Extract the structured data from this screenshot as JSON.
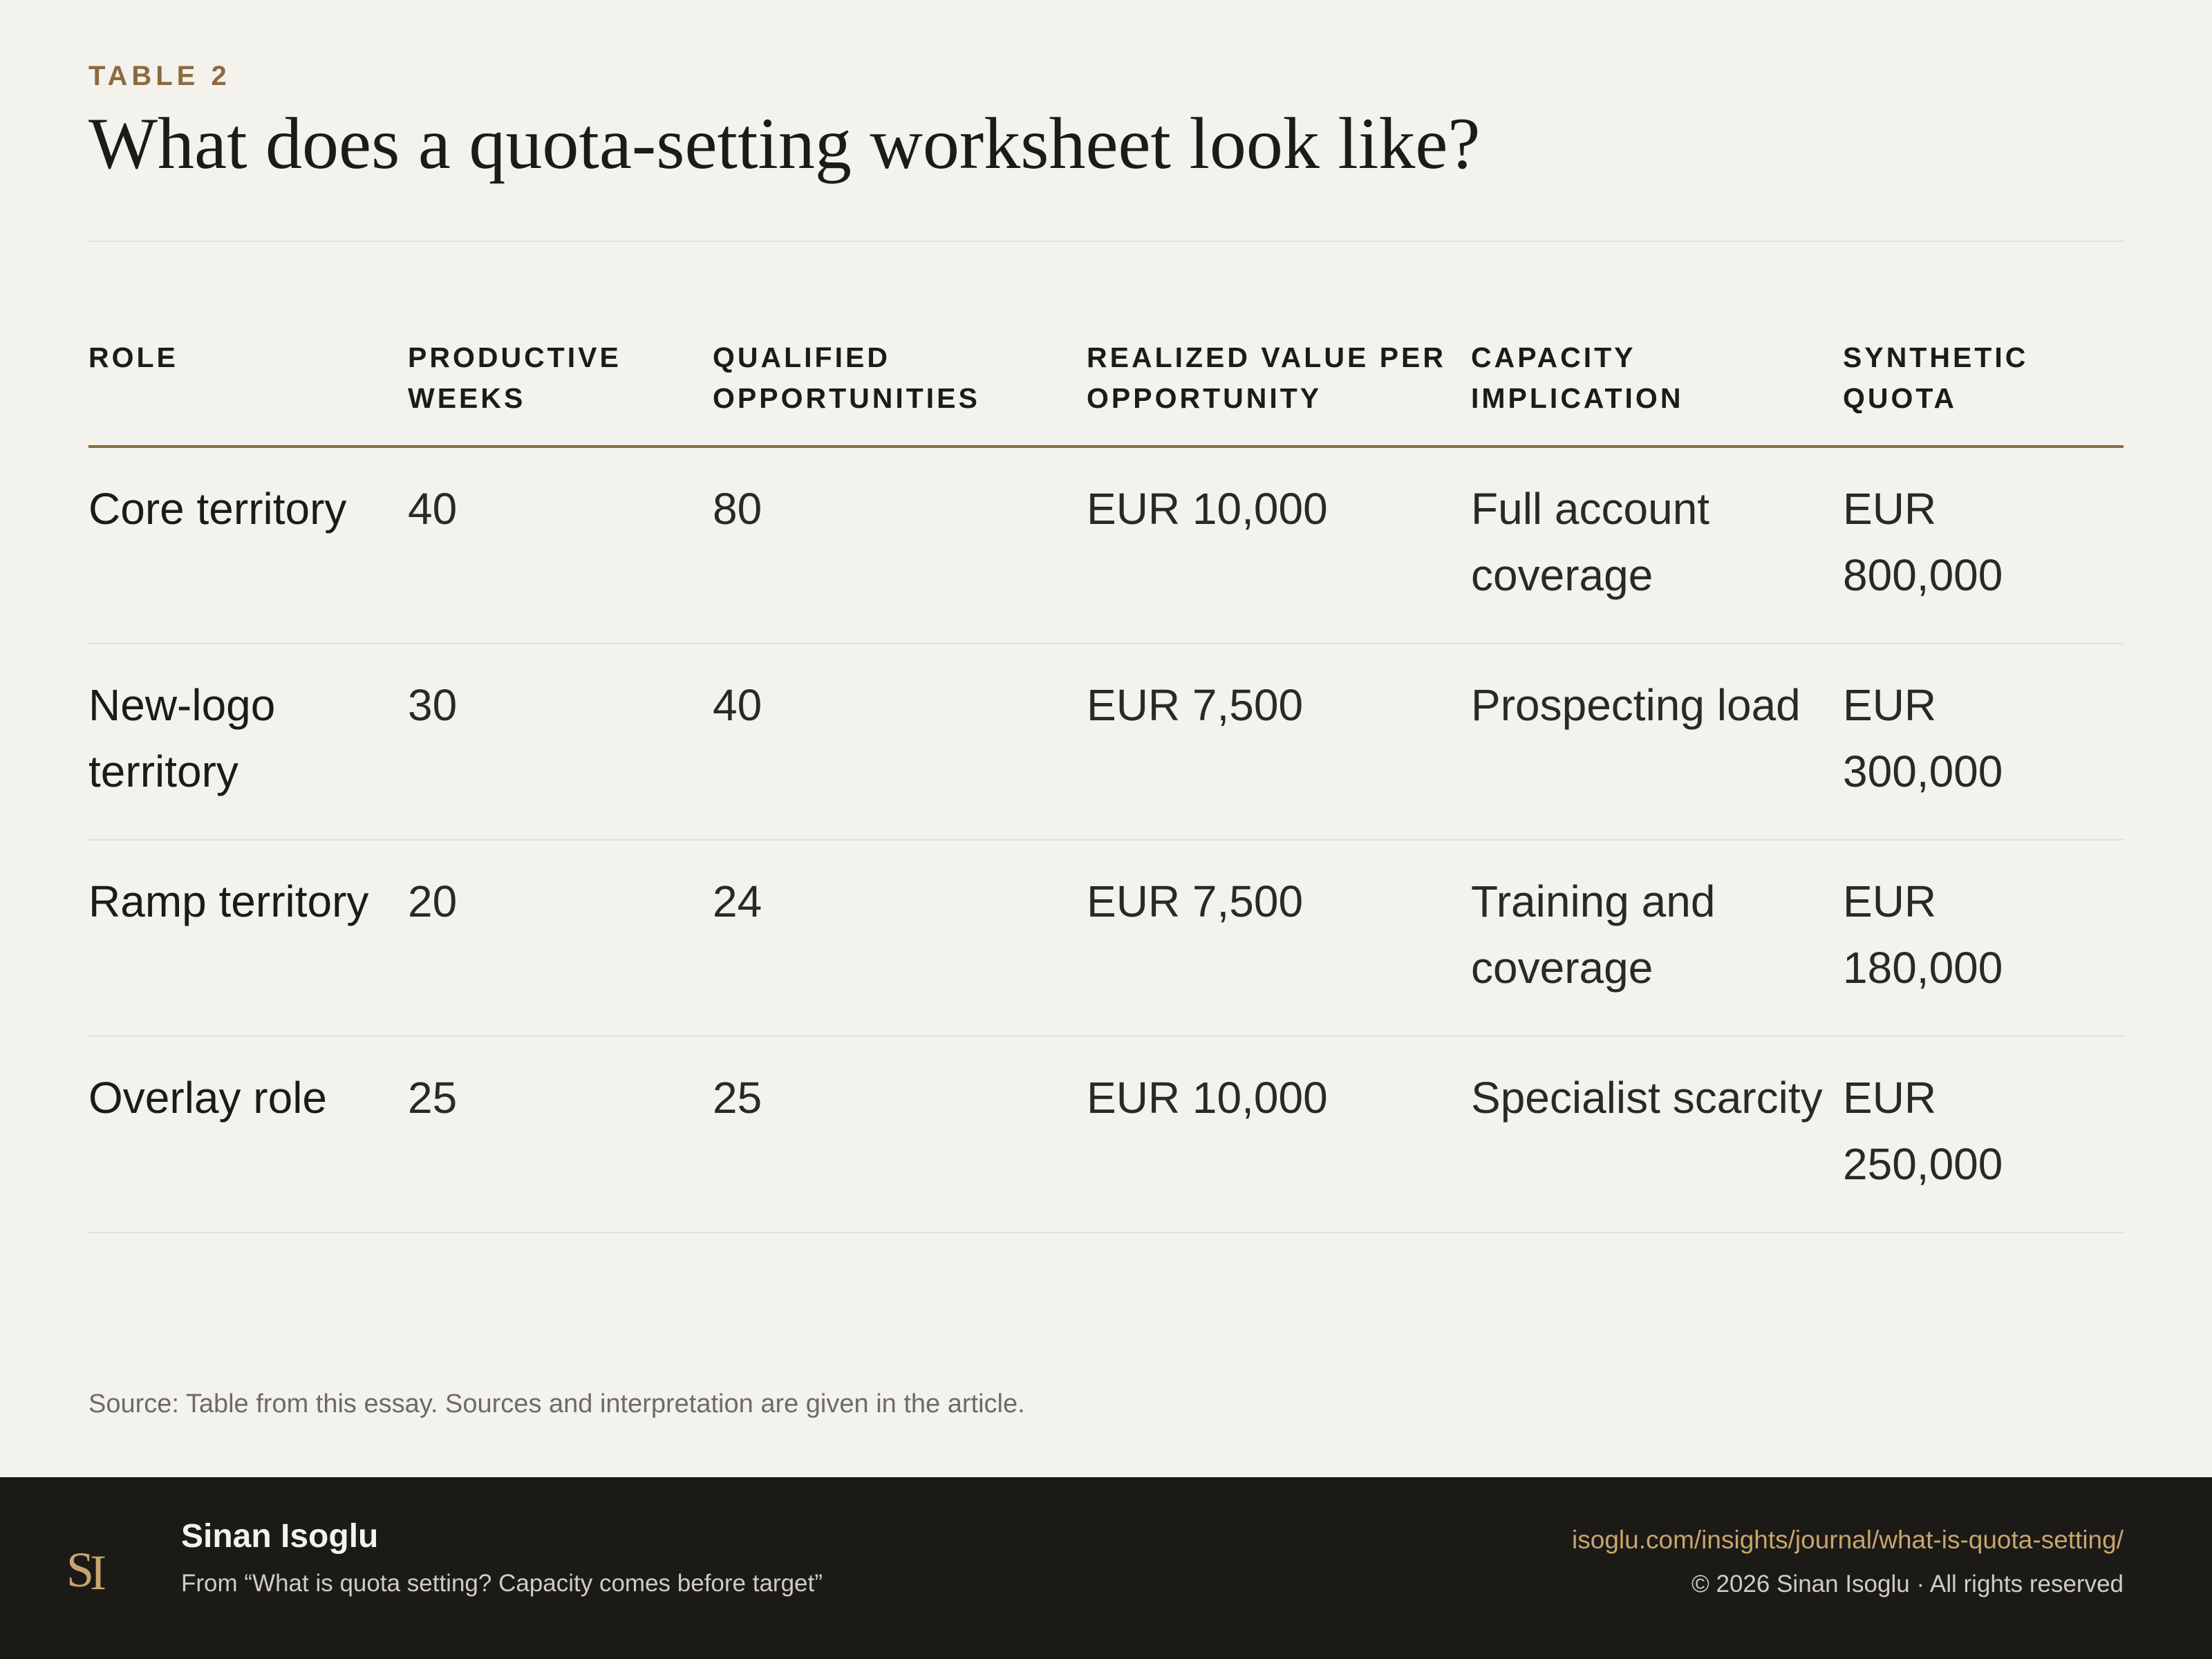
{
  "header": {
    "eyebrow": "TABLE 2",
    "title": "What does a quota-setting worksheet look like?"
  },
  "table": {
    "columns": [
      "ROLE",
      "PRODUCTIVE WEEKS",
      "QUALIFIED OPPORTUNITIES",
      "REALIZED VALUE PER OPPORTUNITY",
      "CAPACITY IMPLICATION",
      "SYNTHETIC QUOTA"
    ],
    "rows": [
      [
        "Core territory",
        "40",
        "80",
        "EUR 10,000",
        "Full account coverage",
        "EUR 800,000"
      ],
      [
        "New-logo territory",
        "30",
        "40",
        "EUR 7,500",
        "Prospecting load",
        "EUR 300,000"
      ],
      [
        "Ramp territory",
        "20",
        "24",
        "EUR 7,500",
        "Training and coverage",
        "EUR 180,000"
      ],
      [
        "Overlay role",
        "25",
        "25",
        "EUR 10,000",
        "Specialist scarcity",
        "EUR 250,000"
      ]
    ]
  },
  "source_note": "Source: Table from this essay. Sources and interpretation are given in the article.",
  "footer": {
    "logo_text": "SI",
    "author": "Sinan Isoglu",
    "from": "From “What is quota setting? Capacity comes before target”",
    "url": "isoglu.com/insights/journal/what-is-quota-setting/",
    "copyright": "© 2026 Sinan Isoglu · All rights reserved"
  },
  "colors": {
    "background": "#f3f2ed",
    "accent": "#8c6a3f",
    "footer_background": "#1b1a16",
    "link": "#c9a46d"
  }
}
